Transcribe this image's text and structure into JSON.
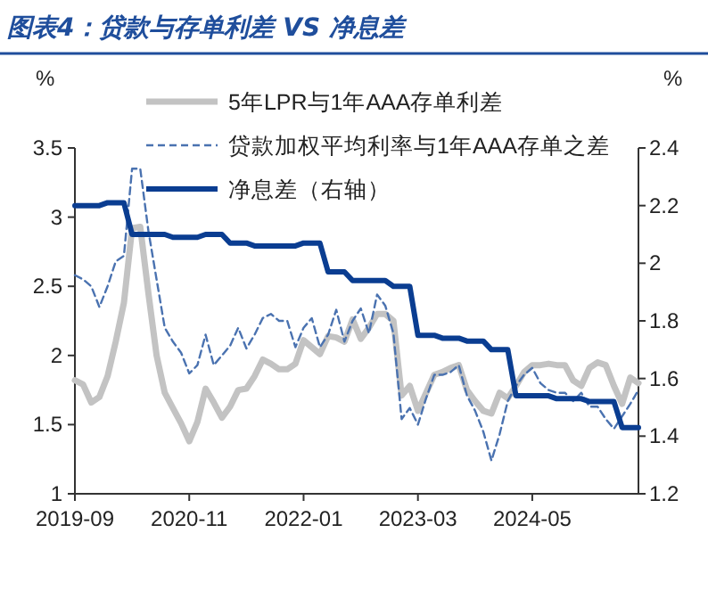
{
  "chart_data": {
    "type": "line",
    "title": "图表4：贷款与存单利差 VS 净息差",
    "ylabel": "%",
    "y2label": "%",
    "x": [
      "2019-09",
      "2019-10",
      "2019-11",
      "2019-12",
      "2020-01",
      "2020-02",
      "2020-03",
      "2020-04",
      "2020-05",
      "2020-06",
      "2020-07",
      "2020-08",
      "2020-09",
      "2020-10",
      "2020-11",
      "2020-12",
      "2021-01",
      "2021-02",
      "2021-03",
      "2021-04",
      "2021-05",
      "2021-06",
      "2021-07",
      "2021-08",
      "2021-09",
      "2021-10",
      "2021-11",
      "2021-12",
      "2022-01",
      "2022-02",
      "2022-03",
      "2022-04",
      "2022-05",
      "2022-06",
      "2022-07",
      "2022-08",
      "2022-09",
      "2022-10",
      "2022-11",
      "2022-12",
      "2023-01",
      "2023-02",
      "2023-03",
      "2023-04",
      "2023-05",
      "2023-06",
      "2023-07",
      "2023-08",
      "2023-09",
      "2023-10",
      "2023-11",
      "2023-12",
      "2024-01",
      "2024-02",
      "2024-03",
      "2024-04",
      "2024-05",
      "2024-06",
      "2024-07",
      "2024-08",
      "2024-09",
      "2024-10",
      "2024-11",
      "2024-12",
      "2025-01",
      "2025-02",
      "2025-03",
      "2025-04",
      "2025-05",
      "2025-06"
    ],
    "xlim": [
      "2019-09",
      "2025-06"
    ],
    "xticks": [
      "2019-09",
      "2020-11",
      "2022-01",
      "2023-03",
      "2024-05"
    ],
    "ylim": [
      1,
      3.5
    ],
    "yticks": [
      1,
      1.5,
      2,
      2.5,
      3,
      3.5
    ],
    "y2lim": [
      1.2,
      2.4
    ],
    "y2ticks": [
      1.2,
      1.4,
      1.6,
      1.8,
      2,
      2.2,
      2.4
    ],
    "legend": "top right",
    "series": [
      {
        "name": "5年LPR与1年AAA存单利差",
        "color": "#c3c3c3",
        "line_style": "solid",
        "values": [
          1.82,
          1.79,
          1.66,
          1.7,
          1.85,
          2.1,
          2.38,
          2.92,
          2.93,
          2.45,
          2.0,
          1.73,
          1.62,
          1.51,
          1.38,
          1.52,
          1.76,
          1.66,
          1.55,
          1.63,
          1.75,
          1.76,
          1.85,
          1.97,
          1.94,
          1.9,
          1.9,
          1.94,
          2.11,
          2.06,
          2.01,
          2.14,
          2.13,
          2.1,
          2.26,
          2.12,
          2.2,
          2.3,
          2.3,
          2.25,
          1.71,
          1.78,
          1.6,
          1.73,
          1.86,
          1.88,
          1.91,
          1.93,
          1.75,
          1.67,
          1.6,
          1.58,
          1.73,
          1.69,
          1.78,
          1.88,
          1.93,
          1.93,
          1.94,
          1.93,
          1.93,
          1.82,
          1.78,
          1.91,
          1.95,
          1.93,
          1.78,
          1.65,
          1.84,
          1.8
        ]
      },
      {
        "name": "贷款加权平均利率与1年AAA存单之差",
        "color": "#4a72b0",
        "line_style": "dashed",
        "values": [
          2.58,
          2.55,
          2.5,
          2.35,
          2.5,
          2.68,
          2.72,
          3.35,
          3.35,
          2.9,
          2.55,
          2.2,
          2.1,
          2.02,
          1.87,
          1.93,
          2.15,
          1.93,
          2.0,
          2.07,
          2.2,
          2.05,
          2.15,
          2.27,
          2.3,
          2.25,
          2.25,
          2.06,
          2.2,
          2.27,
          2.06,
          2.15,
          2.33,
          2.1,
          2.25,
          2.34,
          2.16,
          2.44,
          2.36,
          2.16,
          1.54,
          1.62,
          1.5,
          1.69,
          1.86,
          1.86,
          1.88,
          1.93,
          1.71,
          1.6,
          1.45,
          1.24,
          1.43,
          1.67,
          1.78,
          1.86,
          1.91,
          1.8,
          1.75,
          1.73,
          1.73,
          1.67,
          1.73,
          1.63,
          1.63,
          1.54,
          1.47,
          1.56,
          1.65,
          1.75
        ]
      },
      {
        "name": "净息差（右轴）",
        "color": "#0a3d91",
        "line_style": "solid",
        "axis": "y2",
        "values": [
          2.2,
          2.2,
          2.2,
          2.2,
          2.21,
          2.21,
          2.21,
          2.1,
          2.1,
          2.1,
          2.1,
          2.1,
          2.09,
          2.09,
          2.09,
          2.09,
          2.1,
          2.1,
          2.1,
          2.07,
          2.07,
          2.07,
          2.06,
          2.06,
          2.06,
          2.06,
          2.06,
          2.06,
          2.07,
          2.07,
          2.07,
          1.97,
          1.97,
          1.97,
          1.94,
          1.94,
          1.94,
          1.94,
          1.94,
          1.92,
          1.92,
          1.92,
          1.75,
          1.75,
          1.75,
          1.74,
          1.74,
          1.74,
          1.73,
          1.73,
          1.73,
          1.7,
          1.7,
          1.7,
          1.54,
          1.54,
          1.54,
          1.54,
          1.54,
          1.53,
          1.53,
          1.53,
          1.53,
          1.52,
          1.52,
          1.52,
          1.52,
          1.43,
          1.43,
          1.43
        ]
      }
    ]
  }
}
